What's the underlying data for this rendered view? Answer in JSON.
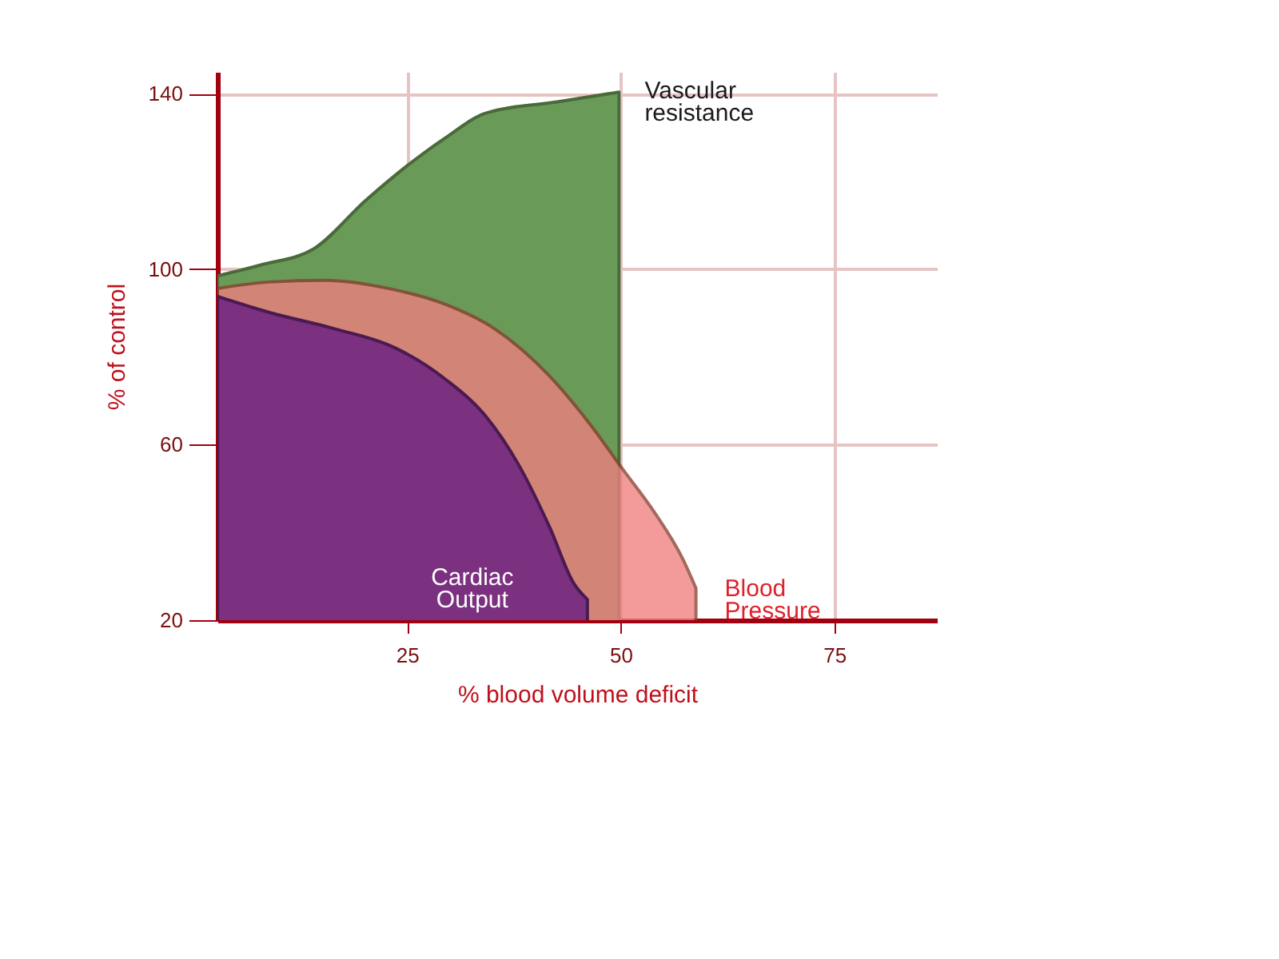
{
  "chart_data": {
    "type": "area",
    "xlabel": "% blood volume deficit",
    "ylabel": "% of control",
    "xlim": [
      2.8,
      87
    ],
    "ylim": [
      20,
      145
    ],
    "xticks": [
      25,
      50,
      75
    ],
    "yticks": [
      20,
      60,
      100,
      140
    ],
    "grid": true,
    "series": [
      {
        "name": "Vascular resistance",
        "color": "#6a9a58",
        "x": [
          2.8,
          7.9,
          14.1,
          20.1,
          25,
          29.5,
          34.2,
          42.7,
          49.8
        ],
        "values": [
          98.5,
          101,
          104.7,
          115.6,
          123.6,
          130,
          135.6,
          138.2,
          140.4
        ]
      },
      {
        "name": "Blood Pressure",
        "color": "#f08080",
        "x": [
          2.8,
          8.8,
          15.4,
          22.9,
          29.5,
          35.2,
          41.7,
          46.4,
          50.2,
          53.9,
          57.3,
          58.8
        ],
        "values": [
          95.6,
          97.1,
          97.5,
          95.6,
          92,
          86.5,
          75.6,
          64.7,
          54.5,
          44.7,
          33.8,
          27.3
        ]
      },
      {
        "name": "Cardiac Output",
        "color": "#7b3080",
        "x": [
          2.8,
          8.8,
          16.4,
          23.9,
          29.5,
          34.2,
          38,
          41.7,
          44.5,
          46.1
        ],
        "values": [
          93.8,
          90.2,
          86.5,
          81.8,
          74.9,
          66.5,
          55.6,
          41.1,
          28.4,
          24.7
        ]
      }
    ]
  }
}
